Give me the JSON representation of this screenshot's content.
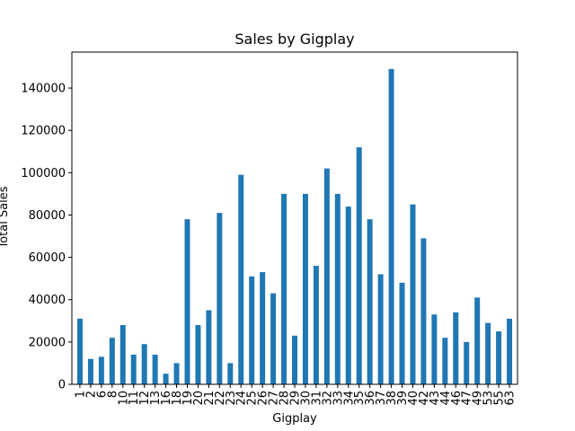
{
  "chart_data": {
    "type": "bar",
    "title": "Sales by Gigplay",
    "xlabel": "Gigplay",
    "ylabel": "Total Sales",
    "ylim": [
      0,
      157000
    ],
    "yticks": [
      0,
      20000,
      40000,
      60000,
      80000,
      100000,
      120000,
      140000
    ],
    "grid": false,
    "legend": "none",
    "bar_color": "#1f77b4",
    "categories": [
      "1",
      "2",
      "6",
      "8",
      "10",
      "11",
      "12",
      "13",
      "16",
      "18",
      "19",
      "20",
      "21",
      "22",
      "23",
      "24",
      "25",
      "26",
      "27",
      "28",
      "29",
      "30",
      "31",
      "32",
      "33",
      "34",
      "35",
      "36",
      "37",
      "38",
      "39",
      "40",
      "42",
      "43",
      "44",
      "46",
      "47",
      "49",
      "53",
      "55",
      "63"
    ],
    "values": [
      31000,
      12000,
      13000,
      22000,
      28000,
      14000,
      19000,
      14000,
      5000,
      10000,
      78000,
      28000,
      35000,
      81000,
      10000,
      99000,
      51000,
      53000,
      43000,
      90000,
      23000,
      90000,
      56000,
      102000,
      90000,
      84000,
      112000,
      78000,
      52000,
      149000,
      48000,
      85000,
      69000,
      33000,
      22000,
      34000,
      20000,
      41000,
      29000,
      25000,
      31000
    ]
  }
}
